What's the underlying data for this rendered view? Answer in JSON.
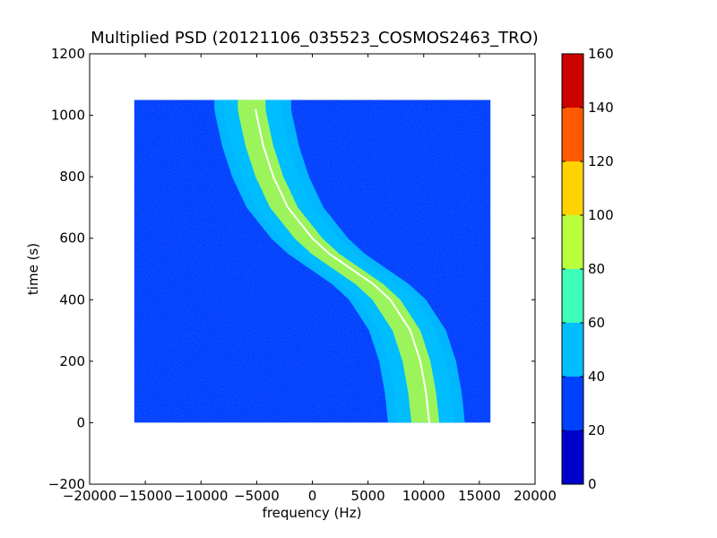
{
  "chart_data": {
    "type": "heatmap",
    "title": "Multiplied PSD (20121106_035523_COSMOS2463_TRO)",
    "xlabel": "frequency (Hz)",
    "ylabel": "time (s)",
    "xlim": [
      -20000,
      20000
    ],
    "ylim": [
      -200,
      1200
    ],
    "xticks": [
      -20000,
      -15000,
      -10000,
      -5000,
      0,
      5000,
      10000,
      15000,
      20000
    ],
    "xtick_labels": [
      "−20000",
      "−15000",
      "−10000",
      "−5000",
      "0",
      "5000",
      "10000",
      "15000",
      "20000"
    ],
    "yticks": [
      -200,
      0,
      200,
      400,
      600,
      800,
      1000,
      1200
    ],
    "ytick_labels": [
      "−200",
      "0",
      "200",
      "400",
      "600",
      "800",
      "1000",
      "1200"
    ],
    "data_extent": {
      "x": [
        -16000,
        16000
      ],
      "y": [
        0,
        1050
      ]
    },
    "background_level": 25,
    "signal_track": {
      "description": "S-shaped Doppler track",
      "time": [
        0,
        100,
        200,
        300,
        400,
        450,
        500,
        550,
        600,
        700,
        800,
        900,
        1000,
        1020
      ],
      "center_frequency": [
        10500,
        10200,
        9700,
        8800,
        7000,
        5500,
        3500,
        1500,
        0,
        -2200,
        -3500,
        -4400,
        -5000,
        -5100
      ],
      "core_level": 85,
      "halo_level": 55,
      "line_level": 160
    },
    "colorbar": {
      "range": [
        0,
        160
      ],
      "ticks": [
        0,
        20,
        40,
        60,
        80,
        100,
        120,
        140,
        160
      ],
      "tick_labels": [
        "0",
        "20",
        "40",
        "60",
        "80",
        "100",
        "120",
        "140",
        "160"
      ],
      "colors": [
        "#0000cd",
        "#0041ff",
        "#00beff",
        "#3dffb9",
        "#b9ff3d",
        "#ffd300",
        "#ff5a00",
        "#cd0000"
      ]
    }
  }
}
